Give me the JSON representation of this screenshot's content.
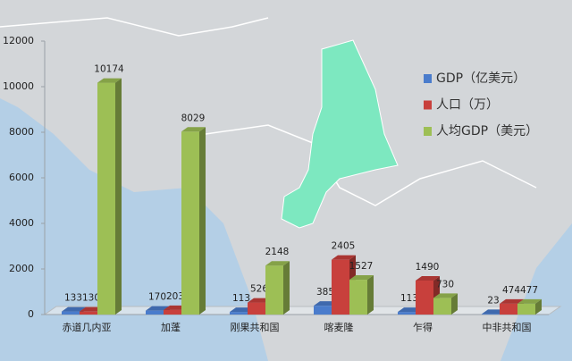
{
  "chart_data": {
    "type": "bar3d",
    "categories": [
      "赤道几内亚",
      "加蓬",
      "刚果共和国",
      "喀麦隆",
      "乍得",
      "中非共和国"
    ],
    "series": [
      {
        "name": "GDP（亿美元）",
        "color": "#4a7ccc",
        "values": [
          133,
          170,
          113,
          385,
          113,
          23
        ]
      },
      {
        "name": "人口（万）",
        "color": "#c8403c",
        "values": [
          130,
          203,
          526,
          2405,
          1490,
          474
        ]
      },
      {
        "name": "人均GDP（美元）",
        "color": "#9dbf55",
        "values": [
          10174,
          8029,
          2148,
          1527,
          730,
          477
        ]
      }
    ],
    "ylim": [
      0,
      12000
    ],
    "yticks": [
      0,
      2000,
      4000,
      6000,
      8000,
      10000,
      12000
    ],
    "legend": "right"
  }
}
